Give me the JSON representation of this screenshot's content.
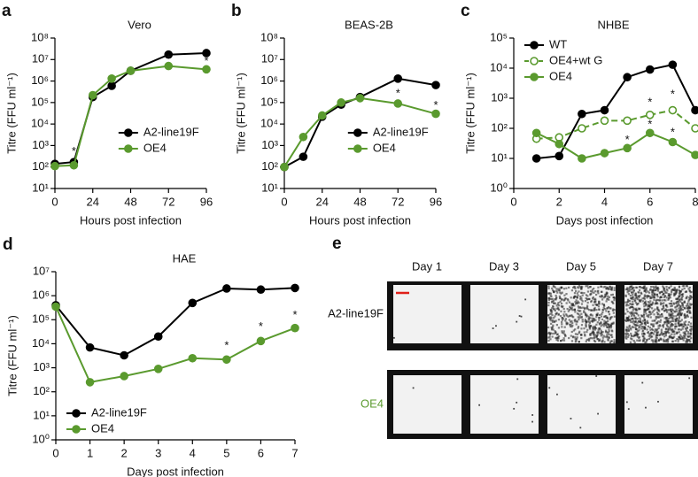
{
  "chart_data": [
    {
      "type": "line",
      "panel_label": "a",
      "title": "Vero",
      "xlabel": "Hours post infection",
      "ylabel": "Titre (FFU ml⁻¹)",
      "x": [
        0,
        12,
        24,
        36,
        48,
        72,
        96
      ],
      "xlim": [
        0,
        96
      ],
      "xticks": [
        0,
        24,
        48,
        72,
        96
      ],
      "log_y": true,
      "ylim": [
        10,
        100000000
      ],
      "yticks": [
        {
          "value": 10,
          "label": "10¹"
        },
        {
          "value": 100,
          "label": "10²"
        },
        {
          "value": 1000,
          "label": "10³"
        },
        {
          "value": 10000,
          "label": "10⁴"
        },
        {
          "value": 100000,
          "label": "10⁵"
        },
        {
          "value": 1000000,
          "label": "10⁶"
        },
        {
          "value": 10000000,
          "label": "10⁷"
        },
        {
          "value": 100000000,
          "label": "10⁸"
        }
      ],
      "legend": "lower right",
      "series": [
        {
          "name": "A2-line19F",
          "color": "#000000",
          "marker": "filled",
          "dashed": false,
          "values": [
            140,
            170,
            180000,
            600000,
            3000000,
            17000000,
            20000000
          ]
        },
        {
          "name": "OE4",
          "color": "#5a9a2e",
          "marker": "filled",
          "dashed": false,
          "values": [
            110,
            120,
            220000,
            1300000,
            3000000,
            5000000,
            3500000
          ]
        }
      ],
      "annotations": [
        {
          "x": 12,
          "y": 500,
          "text": "*"
        },
        {
          "x": 72,
          "y": 10000000,
          "text": "*"
        },
        {
          "x": 96,
          "y": 8000000,
          "text": "*"
        }
      ]
    },
    {
      "type": "line",
      "panel_label": "b",
      "title": "BEAS-2B",
      "xlabel": "Hours post infection",
      "ylabel": "Titre (FFU ml⁻¹)",
      "x": [
        0,
        12,
        24,
        36,
        48,
        72,
        96
      ],
      "xlim": [
        0,
        96
      ],
      "xticks": [
        0,
        24,
        48,
        72,
        96
      ],
      "log_y": true,
      "ylim": [
        10,
        100000000
      ],
      "yticks": [
        {
          "value": 10,
          "label": "10¹"
        },
        {
          "value": 100,
          "label": "10²"
        },
        {
          "value": 1000,
          "label": "10³"
        },
        {
          "value": 10000,
          "label": "10⁴"
        },
        {
          "value": 100000,
          "label": "10⁵"
        },
        {
          "value": 1000000,
          "label": "10⁶"
        },
        {
          "value": 10000000,
          "label": "10⁷"
        },
        {
          "value": 100000000,
          "label": "10⁸"
        }
      ],
      "legend": "lower right",
      "series": [
        {
          "name": "A2-line19F",
          "color": "#000000",
          "marker": "filled",
          "dashed": false,
          "values": [
            100,
            300,
            22000,
            80000,
            180000,
            1300000,
            650000
          ]
        },
        {
          "name": "OE4",
          "color": "#5a9a2e",
          "marker": "filled",
          "dashed": false,
          "values": [
            100,
            2500,
            25000,
            100000,
            160000,
            90000,
            30000
          ]
        }
      ],
      "annotations": [
        {
          "x": 72,
          "y": 250000,
          "text": "*"
        },
        {
          "x": 96,
          "y": 70000,
          "text": "*"
        }
      ]
    },
    {
      "type": "line",
      "panel_label": "c",
      "title": "NHBE",
      "xlabel": "Days post infection",
      "ylabel": "Titre (FFU ml⁻¹)",
      "x": [
        1,
        2,
        3,
        4,
        5,
        6,
        7,
        8
      ],
      "xlim": [
        0,
        8
      ],
      "xticks": [
        0,
        2,
        4,
        6,
        8
      ],
      "log_y": true,
      "ylim": [
        1,
        100000
      ],
      "yticks": [
        {
          "value": 1,
          "label": "10⁰"
        },
        {
          "value": 10,
          "label": "10¹"
        },
        {
          "value": 100,
          "label": "10²"
        },
        {
          "value": 1000,
          "label": "10³"
        },
        {
          "value": 10000,
          "label": "10⁴"
        },
        {
          "value": 100000,
          "label": "10⁵"
        }
      ],
      "legend": "upper left",
      "series": [
        {
          "name": "WT",
          "color": "#000000",
          "marker": "filled",
          "dashed": false,
          "values": [
            10,
            12,
            300,
            400,
            5000,
            9000,
            13000,
            400
          ]
        },
        {
          "name": "OE4+wt G",
          "color": "#5a9a2e",
          "marker": "open",
          "dashed": true,
          "values": [
            45,
            50,
            100,
            180,
            180,
            280,
            400,
            100
          ]
        },
        {
          "name": "OE4",
          "color": "#5a9a2e",
          "marker": "filled",
          "dashed": false,
          "values": [
            70,
            30,
            10,
            15,
            22,
            70,
            35,
            13
          ]
        }
      ],
      "annotations": [
        {
          "x": 5,
          "y": 40,
          "text": "*"
        },
        {
          "x": 6,
          "y": 700,
          "text": "*"
        },
        {
          "x": 6,
          "y": 130,
          "text": "*"
        },
        {
          "x": 7,
          "y": 1300,
          "text": "*"
        },
        {
          "x": 7,
          "y": 70,
          "text": "*"
        }
      ]
    },
    {
      "type": "line",
      "panel_label": "d",
      "title": "HAE",
      "xlabel": "Days post infection",
      "ylabel": "Titre (FFU ml⁻¹)",
      "x": [
        0,
        1,
        2,
        3,
        4,
        5,
        6,
        7
      ],
      "xlim": [
        0,
        7
      ],
      "xticks": [
        0,
        1,
        2,
        3,
        4,
        5,
        6,
        7
      ],
      "log_y": true,
      "ylim": [
        1,
        10000000
      ],
      "yticks": [
        {
          "value": 1,
          "label": "10⁰"
        },
        {
          "value": 10,
          "label": "10¹"
        },
        {
          "value": 100,
          "label": "10²"
        },
        {
          "value": 1000,
          "label": "10³"
        },
        {
          "value": 10000,
          "label": "10⁴"
        },
        {
          "value": 100000,
          "label": "10⁵"
        },
        {
          "value": 1000000,
          "label": "10⁶"
        },
        {
          "value": 10000000,
          "label": "10⁷"
        }
      ],
      "legend": "lower left",
      "series": [
        {
          "name": "A2-line19F",
          "color": "#000000",
          "marker": "filled",
          "dashed": false,
          "values": [
            400000,
            7000,
            3300,
            20000,
            500000,
            2000000,
            1800000,
            2100000
          ]
        },
        {
          "name": "OE4",
          "color": "#5a9a2e",
          "marker": "filled",
          "dashed": false,
          "values": [
            350000,
            250,
            450,
            900,
            2500,
            2200,
            13000,
            45000
          ]
        }
      ],
      "annotations": [
        {
          "x": 5,
          "y": 8000,
          "text": "*"
        },
        {
          "x": 6,
          "y": 50000,
          "text": "*"
        },
        {
          "x": 7,
          "y": 150000,
          "text": "*"
        }
      ]
    }
  ],
  "panel_e": {
    "label": "e",
    "columns": [
      "Day 1",
      "Day 3",
      "Day 5",
      "Day 7"
    ],
    "rows": [
      "A2-line19F",
      "OE4"
    ]
  }
}
